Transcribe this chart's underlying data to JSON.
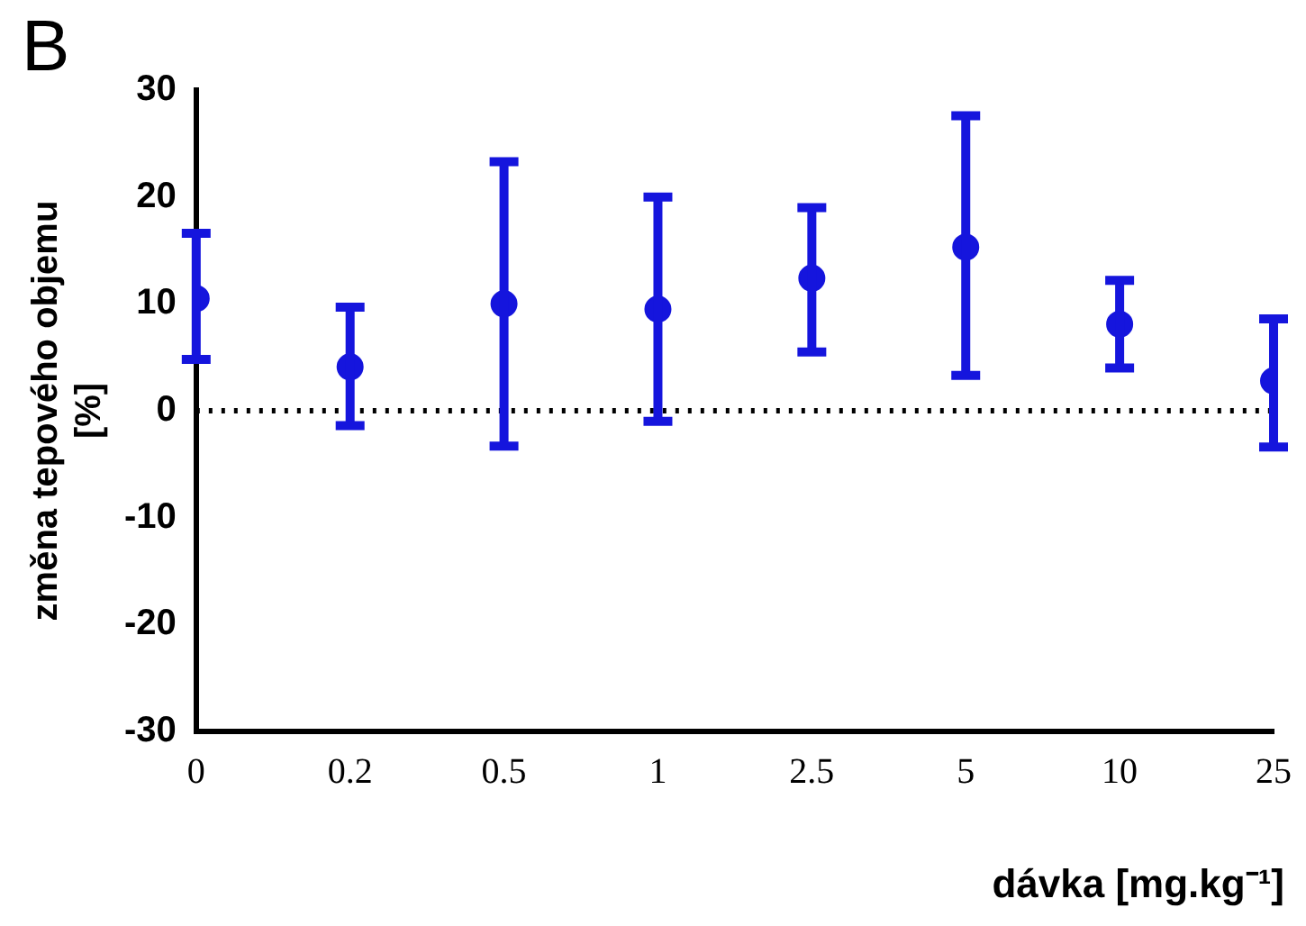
{
  "chart_data": {
    "type": "scatter",
    "title": "B",
    "xlabel": "dávka [mg.kg⁻¹]",
    "ylabel": "změna tepového objemu\n[%]",
    "categories": [
      "0",
      "0.2",
      "0.5",
      "1",
      "2.5",
      "5",
      "10",
      "25"
    ],
    "values": [
      10.5,
      4.1,
      10,
      9.5,
      12.4,
      15.3,
      8.1,
      2.8
    ],
    "errors": [
      [
        4.8,
        16.6
      ],
      [
        -1.4,
        9.7
      ],
      [
        -3.3,
        23.3
      ],
      [
        -1.0,
        20
      ],
      [
        5.5,
        19
      ],
      [
        3.3,
        27.6
      ],
      [
        4.0,
        12.2
      ],
      [
        -3.4,
        8.6
      ]
    ],
    "color": "#1515dd",
    "marker": "circle",
    "ylim": [
      -30,
      30
    ],
    "yticks": [
      -30,
      -20,
      -10,
      0,
      10,
      20,
      30
    ],
    "ref_lines": [
      {
        "axis": "y",
        "value": 0,
        "color": "#000000",
        "line_style": "dotted"
      }
    ]
  }
}
